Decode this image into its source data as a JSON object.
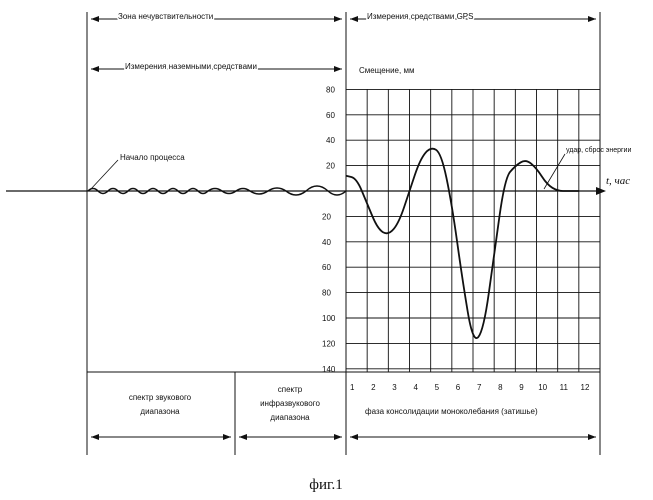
{
  "labels": {
    "dead_zone": "Зона нечувствительности",
    "ground_measurements": "Измерения наземными средствами",
    "gps_measurements": "Измерения средствами GPS",
    "offset_axis": "Смещение, мм",
    "start_process": "Начало процесса",
    "energy_release": "удар, сброс энергии",
    "time_axis": "t, час",
    "caption": "фиг.1"
  },
  "zones": [
    "спектр звукового диапазона",
    "спектр инфразвукового диапазона",
    "фаза консолидации монокoлебания (затишье)"
  ],
  "zone_lines": {
    "zone0": [
      "спектр звукового",
      "диапазона"
    ],
    "zone1": [
      "спектр",
      "инфразвукового",
      "диапазона"
    ],
    "zone2": [
      "фаза консолидации монокoлебания (затишье)"
    ]
  },
  "chart_data": {
    "type": "line",
    "xlabel": "t, час",
    "ylabel": "Смещение, мм",
    "x_ticks": [
      "1",
      "2",
      "3",
      "4",
      "5",
      "6",
      "7",
      "8",
      "9",
      "10",
      "11",
      "12"
    ],
    "y_ticks_positive": [
      "80",
      "60",
      "40",
      "20"
    ],
    "y_ticks_negative": [
      "20",
      "40",
      "60",
      "80",
      "100",
      "120",
      "140"
    ],
    "ylim": [
      -150,
      90
    ],
    "xlim": [
      0,
      12
    ],
    "series": [
      {
        "x": [
          0,
          0.5,
          1,
          1.5,
          2,
          2.5,
          3,
          3.5,
          4,
          4.5,
          5,
          5.5,
          6,
          6.5,
          7,
          7.5,
          8,
          8.5,
          9,
          9.5,
          10,
          10.5,
          11
        ],
        "y": [
          12,
          10,
          -10,
          -30,
          -35,
          -25,
          0,
          25,
          35,
          30,
          -10,
          -70,
          -120,
          -110,
          -50,
          10,
          20,
          25,
          18,
          5,
          0,
          0,
          0
        ]
      }
    ],
    "grid": true
  }
}
